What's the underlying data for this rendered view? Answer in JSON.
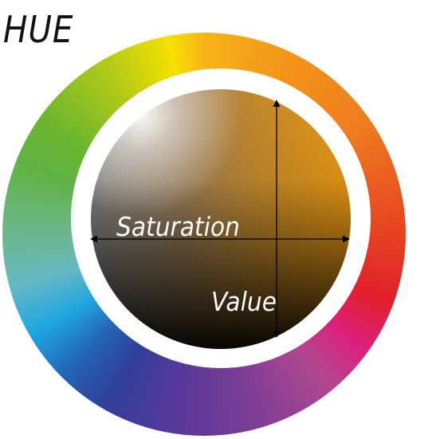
{
  "diagram": {
    "title": "HUE",
    "saturation_label": "Saturation",
    "value_label": "Value"
  },
  "colors": {
    "axis_lines": "#000000",
    "label_text": "#ffffff",
    "title_text": "#111111"
  }
}
